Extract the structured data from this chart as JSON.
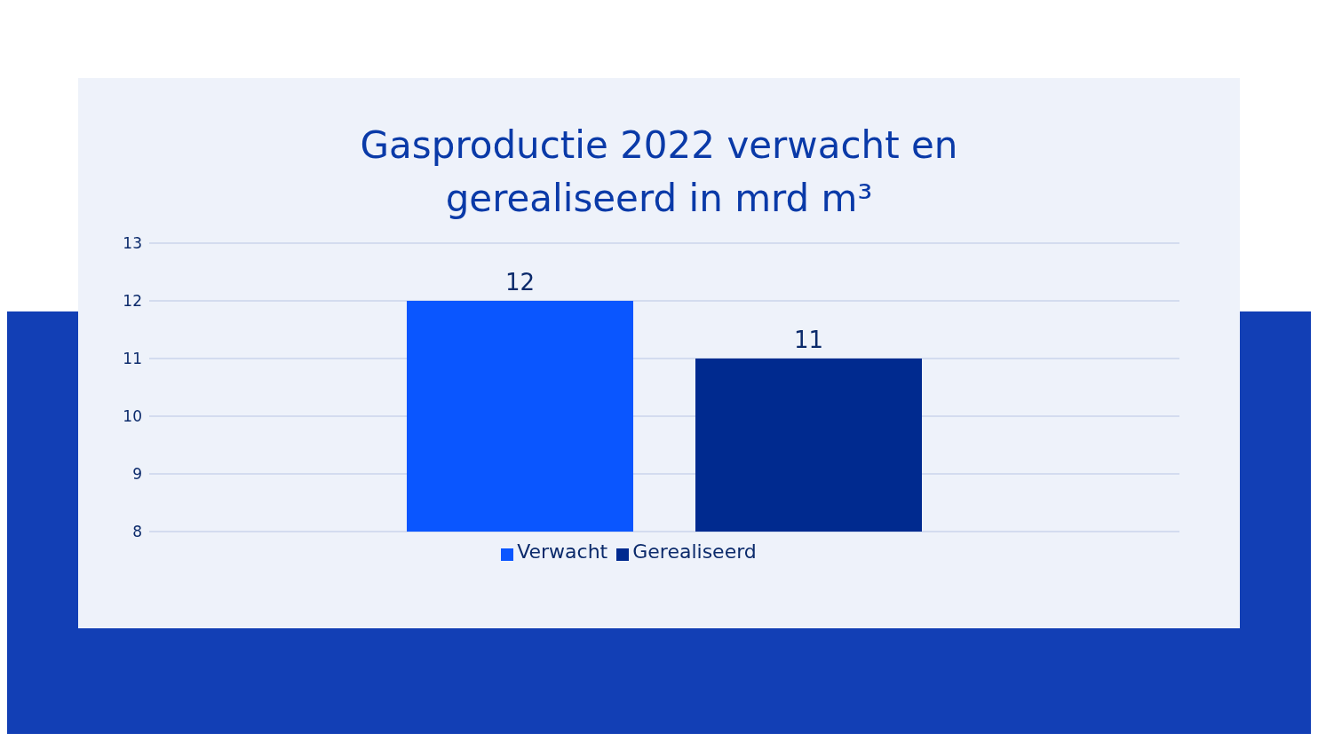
{
  "chart_data": {
    "type": "bar",
    "title": "Gasproductie 2022 verwacht en gerealiseerd in mrd m³",
    "categories": [
      null
    ],
    "series": [
      {
        "name": "Verwacht",
        "color": "#0a56ff",
        "values": [
          12
        ]
      },
      {
        "name": "Gerealiseerd",
        "color": "#002a8f",
        "values": [
          11
        ]
      }
    ],
    "ylim": [
      8,
      13
    ],
    "yticks": [
      8,
      9,
      10,
      11,
      12,
      13
    ],
    "grid": "y",
    "legend": "bottom",
    "data_labels": true
  }
}
